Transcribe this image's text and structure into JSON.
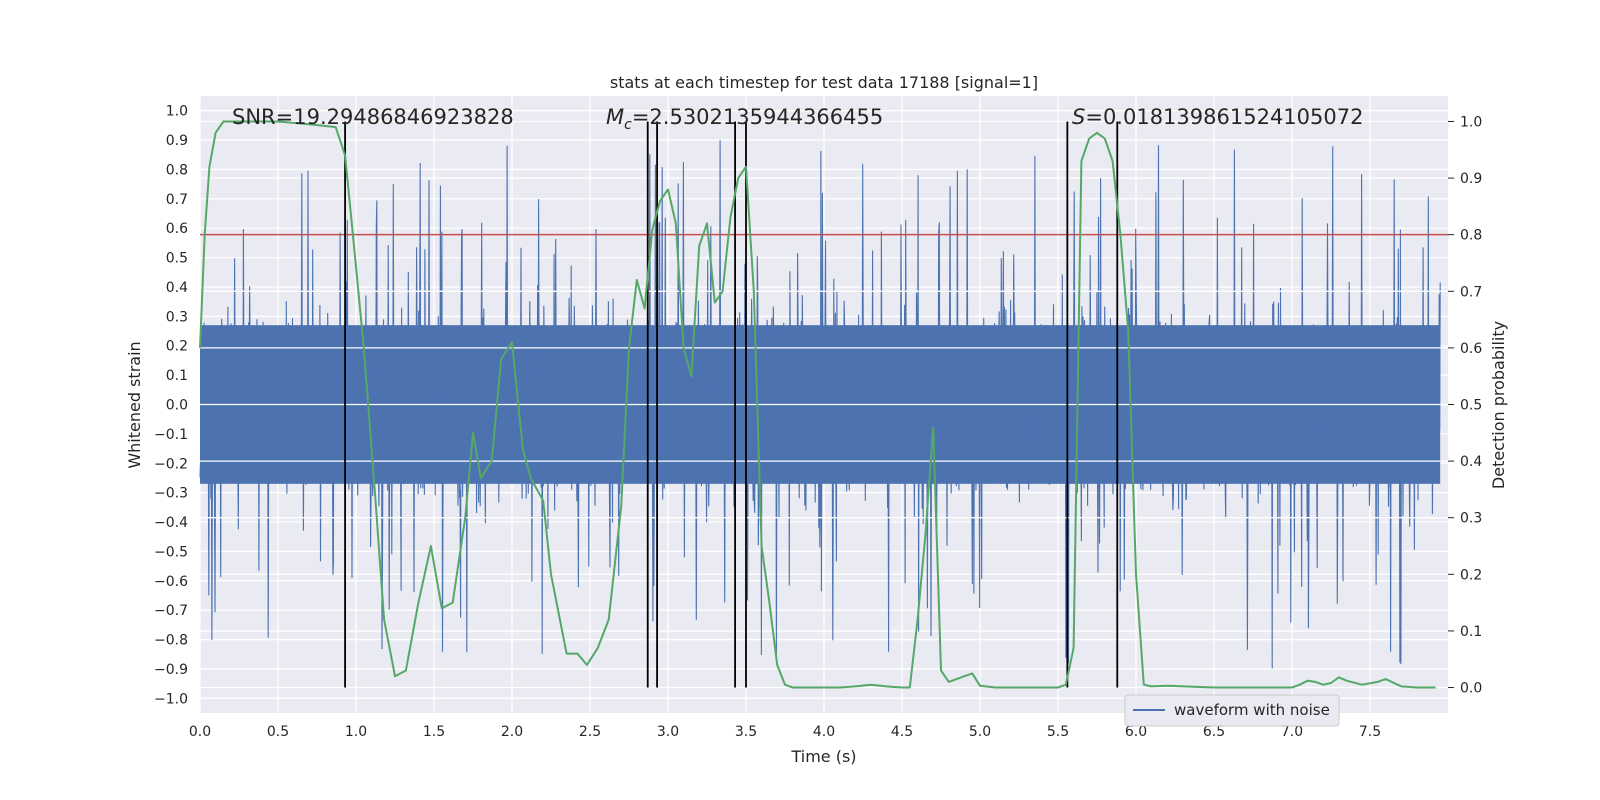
{
  "chart_data": {
    "type": "line",
    "title": "stats at each timestep for test data 17188 [signal=1]",
    "xlabel": "Time (s)",
    "ylabel": "Whitened strain",
    "y2label": "Detection probability",
    "xlim": [
      0.0,
      8.0
    ],
    "ylim": [
      -1.05,
      1.05
    ],
    "y2lim": [
      -0.045,
      1.045
    ],
    "xticks": [
      "0.0",
      "0.5",
      "1.0",
      "1.5",
      "2.0",
      "2.5",
      "3.0",
      "3.5",
      "4.0",
      "4.5",
      "5.0",
      "5.5",
      "6.0",
      "6.5",
      "7.0",
      "7.5"
    ],
    "yticks": [
      "1.0",
      "0.9",
      "0.8",
      "0.7",
      "0.6",
      "0.5",
      "0.4",
      "0.3",
      "0.2",
      "0.1",
      "0.0",
      "−0.1",
      "−0.2",
      "−0.3",
      "−0.4",
      "−0.5",
      "−0.6",
      "−0.7",
      "−0.8",
      "−0.9",
      "−1.0"
    ],
    "y2ticks": [
      "1.0",
      "0.9",
      "0.8",
      "0.7",
      "0.6",
      "0.5",
      "0.4",
      "0.3",
      "0.2",
      "0.1",
      "0.0"
    ],
    "grid": true,
    "legend_placement": "lower-right",
    "annotations": {
      "snr": "SNR=19.29486846923828",
      "mc_prefix": "M",
      "mc_sub": "c",
      "mc_value": "=2.5302135944366455",
      "s_prefix": "S",
      "s_value": "=0.018139861524105072"
    },
    "series": [
      {
        "name": "waveform with noise",
        "color": "#4c72b0",
        "description_of_values": "dense noisy strain roughly within ±0.3 with spikes up to ±1.0"
      },
      {
        "color": "#55a868",
        "axis": "right",
        "x": [
          0.0,
          0.03,
          0.06,
          0.1,
          0.15,
          0.2,
          0.3,
          0.5,
          0.7,
          0.87,
          0.93,
          0.98,
          1.05,
          1.12,
          1.18,
          1.25,
          1.32,
          1.4,
          1.48,
          1.55,
          1.62,
          1.7,
          1.75,
          1.8,
          1.87,
          1.93,
          2.0,
          2.07,
          2.12,
          2.2,
          2.25,
          2.35,
          2.42,
          2.48,
          2.55,
          2.62,
          2.7,
          2.75,
          2.8,
          2.85,
          2.9,
          2.95,
          3.0,
          3.05,
          3.1,
          3.15,
          3.2,
          3.25,
          3.3,
          3.35,
          3.4,
          3.45,
          3.5,
          3.55,
          3.6,
          3.65,
          3.7,
          3.75,
          3.8,
          3.9,
          4.0,
          4.1,
          4.2,
          4.3,
          4.4,
          4.5,
          4.55,
          4.6,
          4.65,
          4.7,
          4.75,
          4.8,
          4.9,
          4.95,
          5.0,
          5.1,
          5.3,
          5.5,
          5.55,
          5.6,
          5.65,
          5.7,
          5.75,
          5.8,
          5.85,
          5.9,
          5.95,
          6.0,
          6.05,
          6.1,
          6.2,
          6.5,
          6.8,
          7.0,
          7.05,
          7.1,
          7.15,
          7.2,
          7.25,
          7.3,
          7.35,
          7.45,
          7.55,
          7.6,
          7.7,
          7.8,
          7.92
        ],
        "values": [
          0.6,
          0.8,
          0.92,
          0.98,
          1.0,
          1.0,
          1.0,
          1.0,
          0.995,
          0.99,
          0.94,
          0.8,
          0.6,
          0.35,
          0.12,
          0.02,
          0.03,
          0.15,
          0.25,
          0.14,
          0.15,
          0.3,
          0.45,
          0.37,
          0.4,
          0.58,
          0.61,
          0.42,
          0.37,
          0.33,
          0.2,
          0.06,
          0.06,
          0.04,
          0.07,
          0.12,
          0.32,
          0.6,
          0.72,
          0.67,
          0.81,
          0.86,
          0.88,
          0.82,
          0.6,
          0.55,
          0.78,
          0.82,
          0.68,
          0.7,
          0.83,
          0.9,
          0.92,
          0.7,
          0.25,
          0.15,
          0.04,
          0.005,
          0.0,
          0.0,
          0.0,
          0.0,
          0.002,
          0.005,
          0.002,
          0.0,
          0.0,
          0.12,
          0.27,
          0.46,
          0.03,
          0.01,
          0.02,
          0.025,
          0.003,
          0.0,
          0.0,
          0.0,
          0.005,
          0.07,
          0.93,
          0.97,
          0.98,
          0.97,
          0.93,
          0.8,
          0.63,
          0.2,
          0.005,
          0.002,
          0.003,
          0.0,
          0.0,
          0.0,
          0.005,
          0.012,
          0.01,
          0.005,
          0.008,
          0.018,
          0.012,
          0.005,
          0.01,
          0.015,
          0.002,
          0.0,
          0.0
        ]
      }
    ],
    "hline": {
      "y": 0.8,
      "color": "#c44e52"
    },
    "vlines": [
      0.93,
      2.87,
      2.93,
      3.43,
      3.5,
      5.56,
      5.88
    ],
    "vline_color": "#000000"
  }
}
